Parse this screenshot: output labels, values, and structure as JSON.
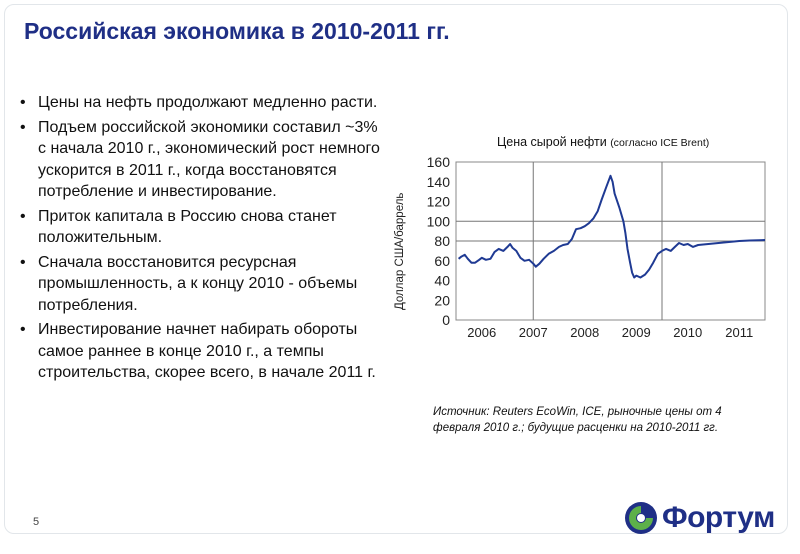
{
  "slide": {
    "title": "Российская экономика в 2010-2011 гг.",
    "page_number": "5",
    "logo_text": "Фортум",
    "bullets": [
      "Цены на нефть продолжают медленно расти.",
      "Подъем российской экономики составил ~3% с начала 2010 г., экономический рост немного ускорится в 2011 г., когда восстановятся потребление и инвестирование.",
      "Приток капитала в Россию снова станет положительным.",
      "Сначала восстановится ресурсная промышленность, а к концу 2010 - объемы потребления.",
      "Инвестирование начнет набирать обороты самое раннее в конце 2010 г., а темпы строительства, скорее всего, в начале 2011 г."
    ],
    "source": "Источник: Reuters EcoWin, ICE, рыночные цены от 4 февраля 2010 г.; будущие расценки на 2010-2011 гг."
  },
  "chart_data": {
    "type": "line",
    "title": "Цена сырой нефти",
    "title_note": "(согласно ICE Brent)",
    "ylabel": "Доллар США/баррель",
    "xlabel": "",
    "ylim": [
      0,
      160
    ],
    "xlim": [
      2005.5,
      2011.5
    ],
    "yticks": [
      "0",
      "20",
      "40",
      "60",
      "80",
      "100",
      "120",
      "140",
      "160"
    ],
    "xticks": [
      "2006",
      "2007",
      "2008",
      "2009",
      "2010",
      "2011"
    ],
    "color": "#1f3a93",
    "series": [
      {
        "values": [
          [
            2005.55,
            62
          ],
          [
            2005.6,
            64
          ],
          [
            2005.67,
            66
          ],
          [
            2005.73,
            62
          ],
          [
            2005.8,
            58
          ],
          [
            2005.87,
            58
          ],
          [
            2005.95,
            61
          ],
          [
            2006.0,
            63
          ],
          [
            2006.08,
            61
          ],
          [
            2006.17,
            62
          ],
          [
            2006.25,
            69
          ],
          [
            2006.33,
            72
          ],
          [
            2006.42,
            70
          ],
          [
            2006.5,
            74
          ],
          [
            2006.55,
            77
          ],
          [
            2006.6,
            73
          ],
          [
            2006.67,
            70
          ],
          [
            2006.75,
            63
          ],
          [
            2006.83,
            60
          ],
          [
            2006.92,
            61
          ],
          [
            2007.0,
            57
          ],
          [
            2007.05,
            54
          ],
          [
            2007.12,
            57
          ],
          [
            2007.2,
            62
          ],
          [
            2007.3,
            67
          ],
          [
            2007.4,
            70
          ],
          [
            2007.5,
            74
          ],
          [
            2007.58,
            76
          ],
          [
            2007.67,
            77
          ],
          [
            2007.75,
            82
          ],
          [
            2007.83,
            92
          ],
          [
            2007.92,
            93
          ],
          [
            2008.0,
            95
          ],
          [
            2008.08,
            98
          ],
          [
            2008.17,
            103
          ],
          [
            2008.25,
            110
          ],
          [
            2008.33,
            122
          ],
          [
            2008.42,
            135
          ],
          [
            2008.5,
            146
          ],
          [
            2008.54,
            140
          ],
          [
            2008.58,
            128
          ],
          [
            2008.67,
            114
          ],
          [
            2008.75,
            100
          ],
          [
            2008.79,
            88
          ],
          [
            2008.83,
            72
          ],
          [
            2008.88,
            58
          ],
          [
            2008.92,
            48
          ],
          [
            2008.96,
            43
          ],
          [
            2009.0,
            45
          ],
          [
            2009.08,
            43
          ],
          [
            2009.17,
            46
          ],
          [
            2009.25,
            51
          ],
          [
            2009.33,
            58
          ],
          [
            2009.42,
            67
          ],
          [
            2009.5,
            70
          ],
          [
            2009.58,
            72
          ],
          [
            2009.67,
            70
          ],
          [
            2009.75,
            74
          ],
          [
            2009.83,
            78
          ],
          [
            2009.92,
            76
          ],
          [
            2010.0,
            77
          ],
          [
            2010.1,
            74
          ],
          [
            2010.2,
            76
          ],
          [
            2010.4,
            77
          ],
          [
            2010.6,
            78
          ],
          [
            2010.8,
            79
          ],
          [
            2011.0,
            80
          ],
          [
            2011.2,
            80.5
          ],
          [
            2011.5,
            81
          ]
        ]
      }
    ],
    "grid": {
      "horizontal_lines": [
        80,
        100
      ],
      "vertical_lines": [
        2007,
        2009.5
      ]
    }
  }
}
